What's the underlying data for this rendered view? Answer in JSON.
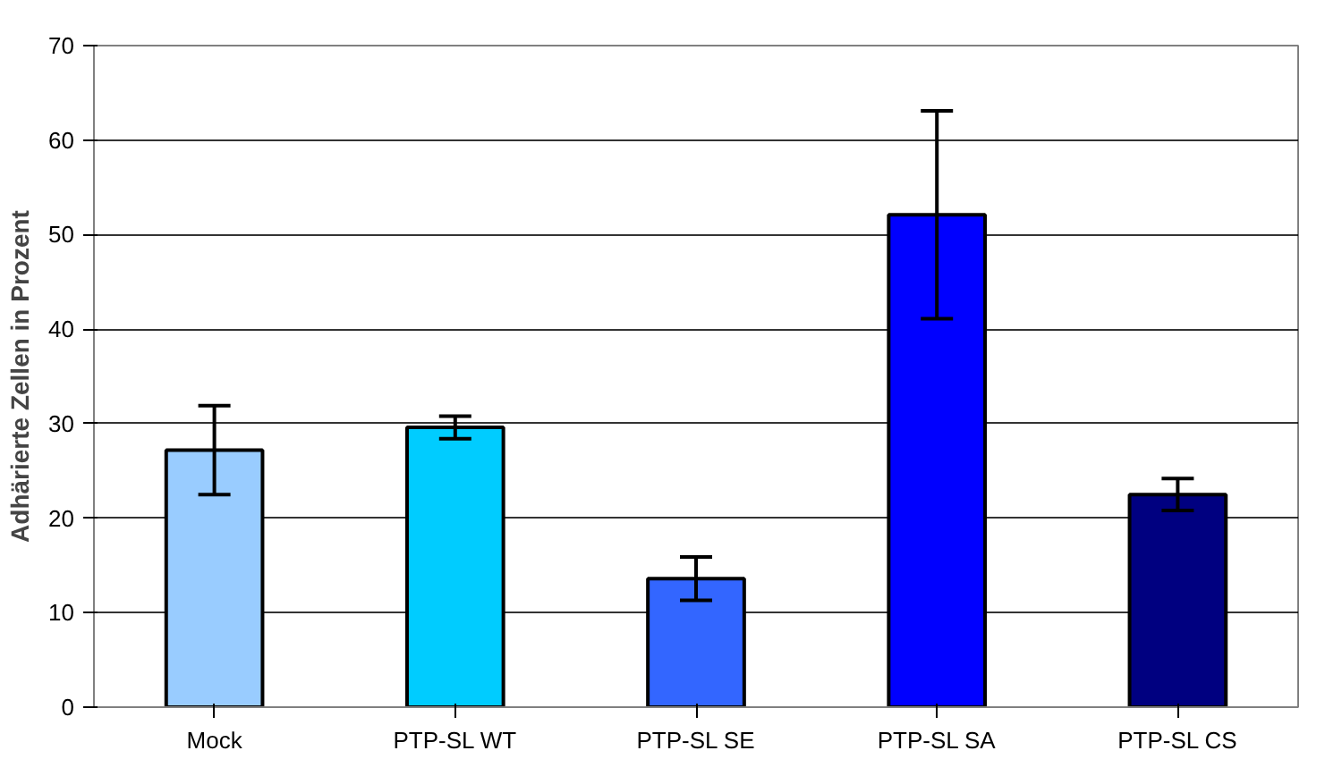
{
  "chart_data": {
    "type": "bar",
    "ylabel": "Adhärierte Zellen in Prozent",
    "categories": [
      "Mock",
      "PTP-SL WT",
      "PTP-SL SE",
      "PTP-SL SA",
      "PTP-SL CS"
    ],
    "values": [
      27.2,
      29.6,
      13.6,
      52.1,
      22.5
    ],
    "errors": [
      4.7,
      1.2,
      2.3,
      11,
      1.7
    ],
    "colors": [
      "#99ccff",
      "#00ccff",
      "#3366ff",
      "#0000ff",
      "#000080"
    ],
    "ylim": [
      0,
      70
    ],
    "yticks": [
      0,
      10,
      20,
      30,
      40,
      50,
      60,
      70
    ],
    "grid": "y"
  }
}
